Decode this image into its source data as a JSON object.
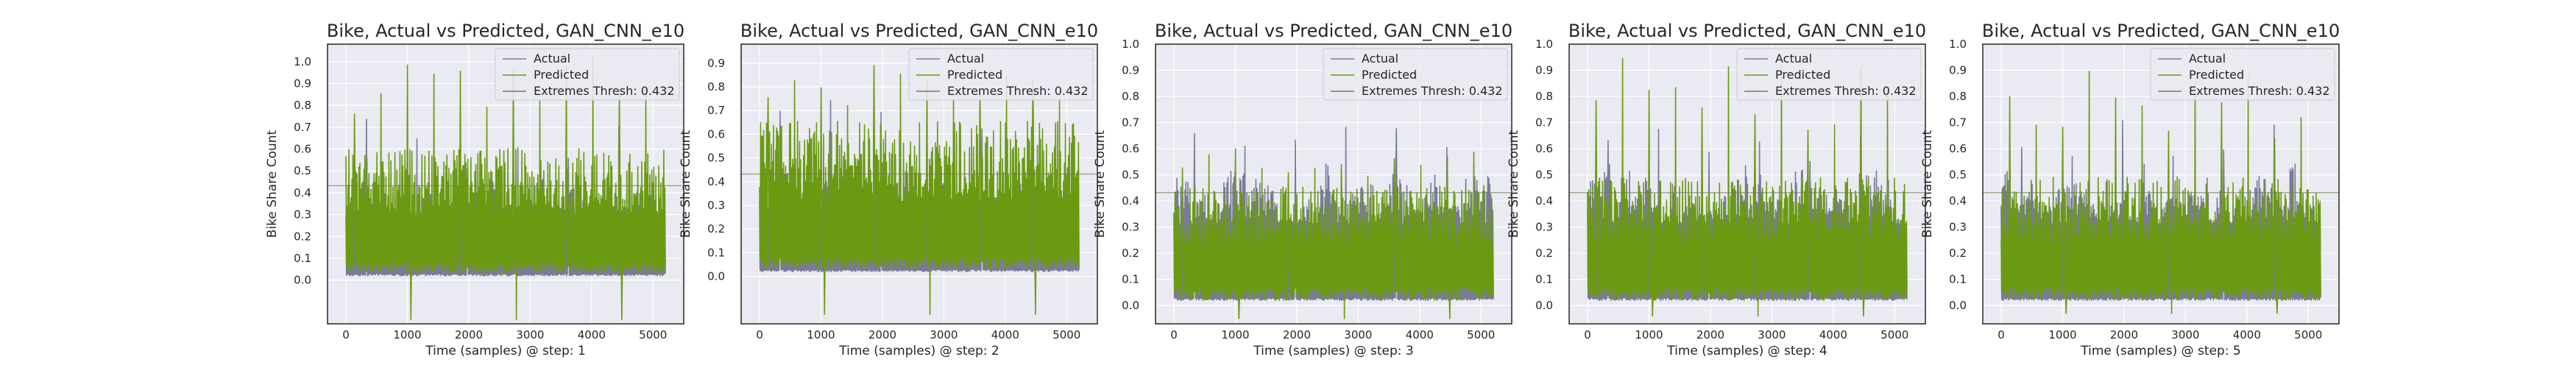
{
  "colors": {
    "actual": "#7a7a9c",
    "predicted": "#6b9a12",
    "thresh": "#6f7f4f",
    "plot_bg": "#eaeaf2",
    "grid": "#ffffff"
  },
  "chart_data": [
    {
      "type": "line",
      "title": "Bike, Actual vs Predicted, GAN_CNN_e10",
      "xlabel": "Time (samples) @ step: 1",
      "ylabel": "Bike Share Count",
      "xlim": [
        -300,
        5500
      ],
      "ylim": [
        -0.2,
        1.08
      ],
      "xticks": [
        0,
        1000,
        2000,
        3000,
        4000,
        5000
      ],
      "yticks": [
        0.0,
        0.1,
        0.2,
        0.3,
        0.4,
        0.5,
        0.6,
        0.7,
        0.8,
        0.9,
        1.0
      ],
      "legend": {
        "position": "top-right",
        "entries": [
          "Actual",
          "Predicted",
          "Extremes Thresh: 0.432"
        ]
      },
      "grid": true,
      "threshold": 0.432,
      "n_samples": 5200,
      "series": [
        {
          "name": "Actual",
          "color": "#7a7a9c",
          "baseline": 0.02,
          "typical_peak": 0.5,
          "max": 0.75
        },
        {
          "name": "Predicted",
          "color": "#6b9a12",
          "baseline": 0.03,
          "typical_peak": 0.55,
          "max": 1.03,
          "min": -0.18
        }
      ]
    },
    {
      "type": "line",
      "title": "Bike, Actual vs Predicted, GAN_CNN_e10",
      "xlabel": "Time (samples) @ step: 2",
      "ylabel": "Bike Share Count",
      "xlim": [
        -300,
        5500
      ],
      "ylim": [
        -0.2,
        0.98
      ],
      "xticks": [
        0,
        1000,
        2000,
        3000,
        4000,
        5000
      ],
      "yticks": [
        0.0,
        0.1,
        0.2,
        0.3,
        0.4,
        0.5,
        0.6,
        0.7,
        0.8,
        0.9
      ],
      "legend": {
        "position": "top-right",
        "entries": [
          "Actual",
          "Predicted",
          "Extremes Thresh: 0.432"
        ]
      },
      "grid": true,
      "threshold": 0.432,
      "n_samples": 5200,
      "series": [
        {
          "name": "Actual",
          "color": "#7a7a9c",
          "baseline": 0.02,
          "typical_peak": 0.5,
          "max": 0.75
        },
        {
          "name": "Predicted",
          "color": "#6b9a12",
          "baseline": 0.03,
          "typical_peak": 0.6,
          "max": 0.9,
          "min": -0.16
        }
      ]
    },
    {
      "type": "line",
      "title": "Bike, Actual vs Predicted, GAN_CNN_e10",
      "xlabel": "Time (samples) @ step: 3",
      "ylabel": "Bike Share Count",
      "xlim": [
        -300,
        5500
      ],
      "ylim": [
        -0.07,
        1.0
      ],
      "xticks": [
        0,
        1000,
        2000,
        3000,
        4000,
        5000
      ],
      "yticks": [
        0.0,
        0.1,
        0.2,
        0.3,
        0.4,
        0.5,
        0.6,
        0.7,
        0.8,
        0.9,
        1.0
      ],
      "legend": {
        "position": "top-right",
        "entries": [
          "Actual",
          "Predicted",
          "Extremes Thresh: 0.432"
        ]
      },
      "grid": true,
      "threshold": 0.432,
      "n_samples": 5200,
      "series": [
        {
          "name": "Actual",
          "color": "#7a7a9c",
          "baseline": 0.02,
          "typical_peak": 0.55,
          "max": 0.72
        },
        {
          "name": "Predicted",
          "color": "#6b9a12",
          "baseline": 0.02,
          "typical_peak": 0.42,
          "max": 0.6,
          "min": -0.05
        }
      ]
    },
    {
      "type": "line",
      "title": "Bike, Actual vs Predicted, GAN_CNN_e10",
      "xlabel": "Time (samples) @ step: 4",
      "ylabel": "Bike Share Count",
      "xlim": [
        -300,
        5500
      ],
      "ylim": [
        -0.07,
        1.0
      ],
      "xticks": [
        0,
        1000,
        2000,
        3000,
        4000,
        5000
      ],
      "yticks": [
        0.0,
        0.1,
        0.2,
        0.3,
        0.4,
        0.5,
        0.6,
        0.7,
        0.8,
        0.9,
        1.0
      ],
      "legend": {
        "position": "top-right",
        "entries": [
          "Actual",
          "Predicted",
          "Extremes Thresh: 0.432"
        ]
      },
      "grid": true,
      "threshold": 0.432,
      "n_samples": 5200,
      "series": [
        {
          "name": "Actual",
          "color": "#7a7a9c",
          "baseline": 0.02,
          "typical_peak": 0.55,
          "max": 0.72
        },
        {
          "name": "Predicted",
          "color": "#6b9a12",
          "baseline": 0.02,
          "typical_peak": 0.45,
          "max": 0.95,
          "min": -0.04
        }
      ]
    },
    {
      "type": "line",
      "title": "Bike, Actual vs Predicted, GAN_CNN_e10",
      "xlabel": "Time (samples) @ step: 5",
      "ylabel": "Bike Share Count",
      "xlim": [
        -300,
        5500
      ],
      "ylim": [
        -0.07,
        1.0
      ],
      "xticks": [
        0,
        1000,
        2000,
        3000,
        4000,
        5000
      ],
      "yticks": [
        0.0,
        0.1,
        0.2,
        0.3,
        0.4,
        0.5,
        0.6,
        0.7,
        0.8,
        0.9,
        1.0
      ],
      "legend": {
        "position": "top-right",
        "entries": [
          "Actual",
          "Predicted",
          "Extremes Thresh: 0.432"
        ]
      },
      "grid": true,
      "threshold": 0.432,
      "n_samples": 5200,
      "series": [
        {
          "name": "Actual",
          "color": "#7a7a9c",
          "baseline": 0.02,
          "typical_peak": 0.55,
          "max": 0.72
        },
        {
          "name": "Predicted",
          "color": "#6b9a12",
          "baseline": 0.02,
          "typical_peak": 0.45,
          "max": 0.92,
          "min": -0.03
        }
      ]
    }
  ]
}
